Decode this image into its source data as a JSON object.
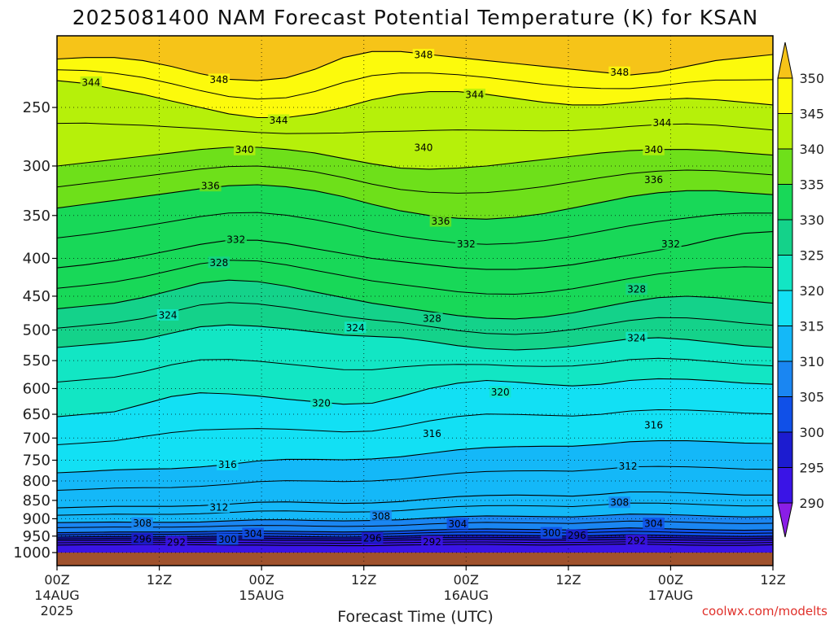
{
  "chart_data": {
    "type": "heatmap",
    "title": "2025081400 NAM Forecast Potential Temperature (K) for KSAN",
    "xlabel": "Forecast Time (UTC)",
    "ylabel": "",
    "credit": "coolwx.com/modelts",
    "x_ticks": [
      {
        "hour": 0,
        "label": "00Z",
        "sub": "14AUG",
        "sub2": "2025"
      },
      {
        "hour": 12,
        "label": "12Z",
        "sub": "",
        "sub2": ""
      },
      {
        "hour": 24,
        "label": "00Z",
        "sub": "15AUG",
        "sub2": ""
      },
      {
        "hour": 36,
        "label": "12Z",
        "sub": "",
        "sub2": ""
      },
      {
        "hour": 48,
        "label": "00Z",
        "sub": "16AUG",
        "sub2": ""
      },
      {
        "hour": 60,
        "label": "12Z",
        "sub": "",
        "sub2": ""
      },
      {
        "hour": 72,
        "label": "00Z",
        "sub": "17AUG",
        "sub2": ""
      },
      {
        "hour": 84,
        "label": "12Z",
        "sub": "",
        "sub2": ""
      }
    ],
    "xlim": [
      0,
      84
    ],
    "y_ticks": [
      250,
      300,
      350,
      400,
      450,
      500,
      550,
      600,
      650,
      700,
      750,
      800,
      850,
      900,
      950,
      1000
    ],
    "ylim": [
      1000,
      200
    ],
    "y_scale": "log-pressure",
    "grid": true,
    "colorbar": {
      "levels": [
        290,
        295,
        300,
        305,
        310,
        315,
        320,
        325,
        330,
        335,
        340,
        345,
        350
      ],
      "colors": [
        "#8a1ee6",
        "#3a14e6",
        "#1c1cd0",
        "#1050e8",
        "#1a86f2",
        "#14b8f8",
        "#12e0f4",
        "#12e6c4",
        "#14d28a",
        "#18d858",
        "#6ee01a",
        "#b6f00a",
        "#fcfa0c",
        "#f6c418"
      ]
    },
    "contour_interval": 4,
    "contours": [
      {
        "value": 292,
        "p": [
          977,
          976,
          976,
          975,
          975,
          976,
          977,
          977,
          978,
          978,
          979,
          979,
          977,
          976,
          975,
          975,
          976,
          977,
          976,
          975,
          974,
          975,
          977,
          978,
          978,
          976
        ]
      },
      {
        "value": 296,
        "p": [
          963,
          963,
          962,
          962,
          962,
          962,
          961,
          962,
          963,
          963,
          964,
          963,
          962,
          961,
          960,
          960,
          961,
          962,
          962,
          961,
          960,
          961,
          962,
          963,
          963,
          962
        ]
      },
      {
        "value": 300,
        "p": [
          953,
          952,
          951,
          951,
          951,
          951,
          950,
          950,
          951,
          952,
          953,
          952,
          950,
          948,
          947,
          947,
          948,
          949,
          950,
          948,
          946,
          947,
          949,
          950,
          951,
          950
        ]
      },
      {
        "value": 304,
        "p": [
          940,
          939,
          938,
          938,
          938,
          937,
          935,
          935,
          936,
          937,
          938,
          937,
          935,
          932,
          930,
          929,
          930,
          931,
          932,
          929,
          926,
          928,
          930,
          932,
          933,
          932
        ]
      },
      {
        "value": 308,
        "p": [
          911,
          910,
          909,
          910,
          910,
          909,
          906,
          903,
          903,
          905,
          906,
          905,
          903,
          898,
          894,
          892,
          893,
          894,
          895,
          891,
          887,
          888,
          890,
          893,
          895,
          894
        ]
      },
      {
        "value": 312,
        "p": [
          870,
          868,
          866,
          866,
          866,
          864,
          860,
          855,
          854,
          856,
          858,
          857,
          853,
          846,
          840,
          837,
          836,
          837,
          839,
          834,
          828,
          828,
          830,
          833,
          836,
          836
        ]
      },
      {
        "value": 316,
        "p": [
          780,
          777,
          773,
          771,
          770,
          766,
          760,
          752,
          748,
          748,
          749,
          747,
          742,
          734,
          726,
          721,
          719,
          718,
          718,
          714,
          708,
          706,
          706,
          708,
          711,
          712
        ]
      },
      {
        "value": 320,
        "p": [
          655,
          650,
          645,
          630,
          615,
          608,
          610,
          614,
          620,
          625,
          630,
          628,
          615,
          600,
          590,
          585,
          588,
          592,
          595,
          592,
          585,
          582,
          583,
          586,
          590,
          592
        ]
      },
      {
        "value": 324,
        "p": [
          528,
          524,
          520,
          515,
          505,
          495,
          492,
          494,
          498,
          503,
          508,
          510,
          512,
          518,
          525,
          530,
          532,
          530,
          526,
          520,
          514,
          512,
          515,
          520,
          525,
          528
        ]
      },
      {
        "value": 328,
        "p": [
          468,
          464,
          460,
          452,
          442,
          432,
          428,
          430,
          436,
          444,
          452,
          460,
          466,
          472,
          478,
          482,
          483,
          480,
          474,
          466,
          458,
          452,
          450,
          452,
          456,
          460
        ]
      },
      {
        "value": 332,
        "p": [
          412,
          408,
          403,
          397,
          390,
          383,
          378,
          378,
          382,
          388,
          394,
          400,
          404,
          408,
          412,
          414,
          414,
          412,
          408,
          402,
          396,
          390,
          384,
          376,
          370,
          368
        ]
      },
      {
        "value": 336,
        "p": [
          342,
          338,
          334,
          330,
          326,
          322,
          319,
          318,
          320,
          324,
          330,
          338,
          345,
          350,
          353,
          354,
          352,
          348,
          342,
          336,
          330,
          326,
          324,
          324,
          326,
          328
        ]
      },
      {
        "value": 340,
        "p": [
          300,
          297,
          294,
          291,
          288,
          285,
          283,
          283,
          285,
          288,
          293,
          298,
          302,
          303,
          302,
          300,
          297,
          294,
          291,
          288,
          286,
          285,
          285,
          286,
          288,
          290
        ]
      },
      {
        "value": 344,
        "p": [
          230,
          232,
          236,
          240,
          245,
          250,
          255,
          258,
          258,
          255,
          250,
          244,
          240,
          238,
          238,
          240,
          243,
          246,
          248,
          248,
          246,
          244,
          243,
          244,
          246,
          248
        ]
      },
      {
        "value": 348,
        "p": [
          215,
          214,
          214,
          216,
          220,
          225,
          229,
          230,
          228,
          222,
          214,
          210,
          210,
          212,
          214,
          216,
          218,
          220,
          222,
          224,
          226,
          224,
          220,
          216,
          214,
          212
        ]
      }
    ],
    "contour_labels": [
      {
        "text": "344",
        "hour": 4,
        "p": 231
      },
      {
        "text": "348",
        "hour": 19,
        "p": 229
      },
      {
        "text": "348",
        "hour": 43,
        "p": 212
      },
      {
        "text": "344",
        "hour": 49,
        "p": 240
      },
      {
        "text": "348",
        "hour": 66,
        "p": 224
      },
      {
        "text": "344",
        "hour": 26,
        "p": 260
      },
      {
        "text": "344",
        "hour": 71,
        "p": 262
      },
      {
        "text": "340",
        "hour": 22,
        "p": 285
      },
      {
        "text": "340",
        "hour": 43,
        "p": 283
      },
      {
        "text": "340",
        "hour": 70,
        "p": 285
      },
      {
        "text": "336",
        "hour": 18,
        "p": 319
      },
      {
        "text": "336",
        "hour": 70,
        "p": 313
      },
      {
        "text": "336",
        "hour": 45,
        "p": 356
      },
      {
        "text": "332",
        "hour": 21,
        "p": 377
      },
      {
        "text": "332",
        "hour": 48,
        "p": 382
      },
      {
        "text": "332",
        "hour": 72,
        "p": 382
      },
      {
        "text": "328",
        "hour": 19,
        "p": 405
      },
      {
        "text": "328",
        "hour": 44,
        "p": 482
      },
      {
        "text": "328",
        "hour": 68,
        "p": 440
      },
      {
        "text": "324",
        "hour": 13,
        "p": 477
      },
      {
        "text": "324",
        "hour": 35,
        "p": 496
      },
      {
        "text": "324",
        "hour": 68,
        "p": 512
      },
      {
        "text": "320",
        "hour": 31,
        "p": 627
      },
      {
        "text": "320",
        "hour": 52,
        "p": 606
      },
      {
        "text": "316",
        "hour": 20,
        "p": 760
      },
      {
        "text": "316",
        "hour": 44,
        "p": 690
      },
      {
        "text": "316",
        "hour": 70,
        "p": 672
      },
      {
        "text": "312",
        "hour": 19,
        "p": 868
      },
      {
        "text": "312",
        "hour": 67,
        "p": 763
      },
      {
        "text": "308",
        "hour": 10,
        "p": 912
      },
      {
        "text": "308",
        "hour": 38,
        "p": 892
      },
      {
        "text": "308",
        "hour": 66,
        "p": 855
      },
      {
        "text": "304",
        "hour": 23,
        "p": 942
      },
      {
        "text": "304",
        "hour": 47,
        "p": 914
      },
      {
        "text": "304",
        "hour": 70,
        "p": 913
      },
      {
        "text": "300",
        "hour": 20,
        "p": 959
      },
      {
        "text": "300",
        "hour": 58,
        "p": 940
      },
      {
        "text": "296",
        "hour": 10,
        "p": 958
      },
      {
        "text": "296",
        "hour": 37,
        "p": 955
      },
      {
        "text": "296",
        "hour": 61,
        "p": 947
      },
      {
        "text": "292",
        "hour": 14,
        "p": 967
      },
      {
        "text": "292",
        "hour": 44,
        "p": 966
      },
      {
        "text": "292",
        "hour": 68,
        "p": 963
      }
    ],
    "ground_color": "#a0522d"
  }
}
